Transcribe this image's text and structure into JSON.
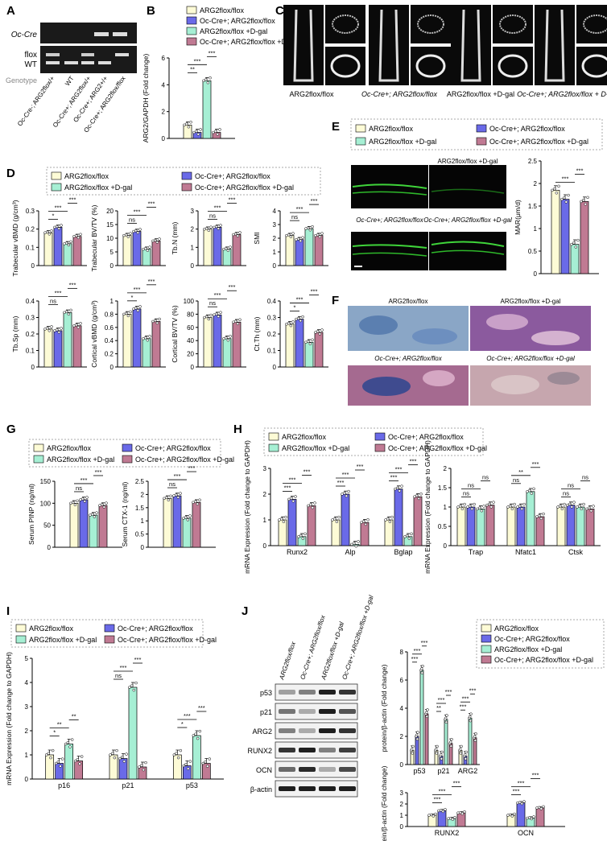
{
  "colors": {
    "c1": "#fdfbd6",
    "c2": "#6a6ae8",
    "c3": "#a6efd4",
    "c4": "#c07a93",
    "gel": "#1a1a1a",
    "axis": "#000000"
  },
  "legend": {
    "g1": "ARG2flox/flox",
    "g2": "Oc-Cre+; ARG2flox/flox",
    "g3": "ARG2flox/flox +D-gal",
    "g4": "Oc-Cre+; ARG2flox/flox +D-gal"
  },
  "panel_A": {
    "letter": "A",
    "band_labels": [
      "Oc-Cre",
      "flox",
      "WT"
    ],
    "genotype_label": "Genotype",
    "lanes": [
      "Oc-Cre-; ARG2flox/+",
      "WT",
      "Oc-Cre+; ARG2flox/+",
      "Oc-Cre+; ARG2+/+",
      "Oc-Cre+; ARG2flox/flox"
    ]
  },
  "panel_C": {
    "letter": "C",
    "labels": [
      "ARG2flox/flox",
      "Oc-Cre+; ARG2flox/flox",
      "ARG2flox/flox +D-gal",
      "Oc-Cre+; ARG2flox/flox + D-gal"
    ]
  },
  "panel_E": {
    "letter": "E",
    "image_labels": [
      "ARG2flox/flox",
      "ARG2flox/flox +D-gal",
      "Oc-Cre+; ARG2flox/flox",
      "Oc-Cre+; ARG2flox/flox +D-gal"
    ]
  },
  "panel_F": {
    "letter": "F",
    "image_labels": [
      "ARG2flox/flox",
      "ARG2flox/flox +D-gal",
      "Oc-Cre+; ARG2flox/flox",
      "Oc-Cre+; ARG2flox/flox +D-gal"
    ]
  },
  "panel_J_blot": {
    "letter": "J",
    "proteins": [
      "p53",
      "p21",
      "ARG2",
      "RUNX2",
      "OCN",
      "β-actin"
    ],
    "lanes": [
      "ARG2flox/flox",
      "Oc-Cre+; ARG2flox/flox",
      "ARG2flox/flox +D-gal",
      "Oc-Cre+; ARG2flox/flox +D-gal"
    ]
  },
  "chart_data": [
    {
      "id": "B",
      "type": "bar",
      "letter": "B",
      "ylabel": "ARG2/GAPDH (Fold change)",
      "ylim": [
        0,
        6
      ],
      "yticks": [
        0,
        2,
        4,
        6
      ],
      "categories": [
        ""
      ],
      "series": [
        {
          "values": [
            1.0
          ]
        },
        {
          "values": [
            0.45
          ]
        },
        {
          "values": [
            4.3
          ]
        },
        {
          "values": [
            0.45
          ]
        }
      ],
      "sig": [
        {
          "a": 0,
          "b": 1,
          "text": "**"
        },
        {
          "a": 0,
          "b": 2,
          "text": "***"
        },
        {
          "a": 2,
          "b": 3,
          "text": "***"
        }
      ]
    },
    {
      "id": "D1",
      "type": "bar",
      "letter": "D",
      "ylabel": "Trabecular vBMD (g/cm³)",
      "ylim": [
        0,
        0.3
      ],
      "yticks": [
        0.0,
        0.1,
        0.2,
        0.3
      ],
      "categories": [
        ""
      ],
      "series": [
        {
          "values": [
            0.18
          ]
        },
        {
          "values": [
            0.21
          ]
        },
        {
          "values": [
            0.12
          ]
        },
        {
          "values": [
            0.16
          ]
        }
      ],
      "sig": [
        {
          "a": 0,
          "b": 1,
          "text": "*"
        },
        {
          "a": 0,
          "b": 2,
          "text": "***"
        },
        {
          "a": 2,
          "b": 3,
          "text": "***"
        }
      ]
    },
    {
      "id": "D2",
      "type": "bar",
      "ylabel": "Trabecular BV/TV (%)",
      "ylim": [
        0,
        20
      ],
      "yticks": [
        0,
        5,
        10,
        15,
        20
      ],
      "categories": [
        ""
      ],
      "series": [
        {
          "values": [
            11
          ]
        },
        {
          "values": [
            12.5
          ]
        },
        {
          "values": [
            6
          ]
        },
        {
          "values": [
            9
          ]
        }
      ],
      "sig": [
        {
          "a": 0,
          "b": 1,
          "text": "ns"
        },
        {
          "a": 0,
          "b": 2,
          "text": "***"
        },
        {
          "a": 2,
          "b": 3,
          "text": "***"
        }
      ]
    },
    {
      "id": "D3",
      "type": "bar",
      "ylabel": "Tb.N (mm)",
      "ylim": [
        0,
        3
      ],
      "yticks": [
        0,
        1,
        2,
        3
      ],
      "categories": [
        ""
      ],
      "series": [
        {
          "values": [
            2.0
          ]
        },
        {
          "values": [
            2.1
          ]
        },
        {
          "values": [
            0.9
          ]
        },
        {
          "values": [
            1.7
          ]
        }
      ],
      "sig": [
        {
          "a": 0,
          "b": 1,
          "text": "ns"
        },
        {
          "a": 0,
          "b": 2,
          "text": "***"
        },
        {
          "a": 2,
          "b": 3,
          "text": "***"
        }
      ]
    },
    {
      "id": "D4",
      "type": "bar",
      "ylabel": "SMI",
      "ylim": [
        0,
        4
      ],
      "yticks": [
        0,
        1,
        2,
        3,
        4
      ],
      "categories": [
        ""
      ],
      "series": [
        {
          "values": [
            2.2
          ]
        },
        {
          "values": [
            1.9
          ]
        },
        {
          "values": [
            2.7
          ]
        },
        {
          "values": [
            2.2
          ]
        }
      ],
      "sig": [
        {
          "a": 0,
          "b": 1,
          "text": "ns"
        },
        {
          "a": 0,
          "b": 2,
          "text": "***"
        },
        {
          "a": 2,
          "b": 3,
          "text": "***"
        }
      ]
    },
    {
      "id": "D5",
      "type": "bar",
      "ylabel": "Tb.Sp (mm)",
      "ylim": [
        0,
        0.4
      ],
      "yticks": [
        0.0,
        0.1,
        0.2,
        0.3,
        0.4
      ],
      "categories": [
        ""
      ],
      "series": [
        {
          "values": [
            0.23
          ]
        },
        {
          "values": [
            0.22
          ]
        },
        {
          "values": [
            0.33
          ]
        },
        {
          "values": [
            0.25
          ]
        }
      ],
      "sig": [
        {
          "a": 0,
          "b": 1,
          "text": "ns"
        },
        {
          "a": 0,
          "b": 2,
          "text": "***"
        },
        {
          "a": 2,
          "b": 3,
          "text": "***"
        }
      ]
    },
    {
      "id": "D6",
      "type": "bar",
      "ylabel": "Cortical vBMD (g/cm³)",
      "ylim": [
        0,
        1.0
      ],
      "yticks": [
        0.0,
        0.2,
        0.4,
        0.6,
        0.8,
        1.0
      ],
      "categories": [
        ""
      ],
      "series": [
        {
          "values": [
            0.8
          ]
        },
        {
          "values": [
            0.88
          ]
        },
        {
          "values": [
            0.43
          ]
        },
        {
          "values": [
            0.69
          ]
        }
      ],
      "sig": [
        {
          "a": 0,
          "b": 1,
          "text": "*"
        },
        {
          "a": 0,
          "b": 2,
          "text": "***"
        },
        {
          "a": 2,
          "b": 3,
          "text": "***"
        }
      ]
    },
    {
      "id": "D7",
      "type": "bar",
      "ylabel": "Cortical BV/TV (%)",
      "ylim": [
        0,
        100
      ],
      "yticks": [
        0,
        20,
        40,
        60,
        80,
        100
      ],
      "categories": [
        ""
      ],
      "series": [
        {
          "values": [
            75
          ]
        },
        {
          "values": [
            79
          ]
        },
        {
          "values": [
            43
          ]
        },
        {
          "values": [
            68
          ]
        }
      ],
      "sig": [
        {
          "a": 0,
          "b": 1,
          "text": "ns"
        },
        {
          "a": 0,
          "b": 2,
          "text": "***"
        },
        {
          "a": 2,
          "b": 3,
          "text": "***"
        }
      ]
    },
    {
      "id": "D8",
      "type": "bar",
      "ylabel": "Ct.Th (mm)",
      "ylim": [
        0,
        0.4
      ],
      "yticks": [
        0.0,
        0.1,
        0.2,
        0.3,
        0.4
      ],
      "categories": [
        ""
      ],
      "series": [
        {
          "values": [
            0.26
          ]
        },
        {
          "values": [
            0.29
          ]
        },
        {
          "values": [
            0.15
          ]
        },
        {
          "values": [
            0.21
          ]
        }
      ],
      "sig": [
        {
          "a": 0,
          "b": 1,
          "text": "*"
        },
        {
          "a": 0,
          "b": 2,
          "text": "***"
        },
        {
          "a": 2,
          "b": 3,
          "text": "***"
        }
      ]
    },
    {
      "id": "E",
      "type": "bar",
      "ylabel": "MAR(μm/d)",
      "ylim": [
        0,
        2.5
      ],
      "yticks": [
        0.0,
        0.5,
        1.0,
        1.5,
        2.0,
        2.5
      ],
      "categories": [
        ""
      ],
      "series": [
        {
          "values": [
            1.85
          ]
        },
        {
          "values": [
            1.65
          ]
        },
        {
          "values": [
            0.65
          ]
        },
        {
          "values": [
            1.6
          ]
        }
      ],
      "sig": [
        {
          "a": 0,
          "b": 2,
          "text": "***"
        },
        {
          "a": 2,
          "b": 3,
          "text": "***"
        }
      ]
    },
    {
      "id": "G1",
      "type": "bar",
      "letter": "G",
      "ylabel": "Serum PINP (ng/ml)",
      "ylim": [
        0,
        150
      ],
      "yticks": [
        0,
        50,
        100,
        150
      ],
      "categories": [
        ""
      ],
      "series": [
        {
          "values": [
            100
          ]
        },
        {
          "values": [
            108
          ]
        },
        {
          "values": [
            73
          ]
        },
        {
          "values": [
            95
          ]
        }
      ],
      "sig": [
        {
          "a": 0,
          "b": 1,
          "text": "ns"
        },
        {
          "a": 0,
          "b": 2,
          "text": "***"
        },
        {
          "a": 2,
          "b": 3,
          "text": "***"
        }
      ]
    },
    {
      "id": "G2",
      "type": "bar",
      "ylabel": "Serum CTX-1 (ng/ml)",
      "ylim": [
        0,
        2.5
      ],
      "yticks": [
        0.0,
        0.5,
        1.0,
        1.5,
        2.0,
        2.5
      ],
      "categories": [
        ""
      ],
      "series": [
        {
          "values": [
            1.85
          ]
        },
        {
          "values": [
            1.95
          ]
        },
        {
          "values": [
            1.1
          ]
        },
        {
          "values": [
            1.7
          ]
        }
      ],
      "sig": [
        {
          "a": 0,
          "b": 1,
          "text": "ns"
        },
        {
          "a": 0,
          "b": 2,
          "text": "***"
        },
        {
          "a": 2,
          "b": 3,
          "text": "***"
        }
      ]
    },
    {
      "id": "H1",
      "type": "bar",
      "letter": "H",
      "ylabel": "mRNA Expression (Fold change to GAPDH)",
      "ylim": [
        0,
        3
      ],
      "yticks": [
        0,
        1,
        2,
        3
      ],
      "categories": [
        "Runx2",
        "Alp",
        "Bglap"
      ],
      "series": [
        {
          "values": [
            1.0,
            1.0,
            1.0
          ]
        },
        {
          "values": [
            1.8,
            2.0,
            2.2
          ]
        },
        {
          "values": [
            0.35,
            0.05,
            0.35
          ]
        },
        {
          "values": [
            1.55,
            0.9,
            1.9
          ]
        }
      ],
      "sig": [
        {
          "c": 0,
          "a": 0,
          "b": 1,
          "text": "***"
        },
        {
          "c": 0,
          "a": 0,
          "b": 2,
          "text": "***"
        },
        {
          "c": 0,
          "a": 2,
          "b": 3,
          "text": "***"
        },
        {
          "c": 1,
          "a": 0,
          "b": 1,
          "text": "***"
        },
        {
          "c": 1,
          "a": 0,
          "b": 2,
          "text": "***"
        },
        {
          "c": 1,
          "a": 2,
          "b": 3,
          "text": "***"
        },
        {
          "c": 2,
          "a": 0,
          "b": 1,
          "text": "***"
        },
        {
          "c": 2,
          "a": 0,
          "b": 2,
          "text": "***"
        },
        {
          "c": 2,
          "a": 2,
          "b": 3,
          "text": "***"
        }
      ]
    },
    {
      "id": "H2",
      "type": "bar",
      "ylabel": "mRNA Expression (Fold change to GAPDH)",
      "ylim": [
        0,
        2.0
      ],
      "yticks": [
        0.0,
        0.5,
        1.0,
        1.5,
        2.0
      ],
      "categories": [
        "Trap",
        "Nfatc1",
        "Ctsk"
      ],
      "series": [
        {
          "values": [
            1.0,
            1.0,
            1.0
          ]
        },
        {
          "values": [
            1.0,
            1.0,
            1.05
          ]
        },
        {
          "values": [
            0.95,
            1.4,
            1.0
          ]
        },
        {
          "values": [
            1.05,
            0.75,
            0.95
          ]
        }
      ],
      "sig": [
        {
          "c": 0,
          "a": 0,
          "b": 1,
          "text": "ns"
        },
        {
          "c": 0,
          "a": 0,
          "b": 2,
          "text": "ns"
        },
        {
          "c": 0,
          "a": 2,
          "b": 3,
          "text": "ns"
        },
        {
          "c": 1,
          "a": 0,
          "b": 1,
          "text": "ns"
        },
        {
          "c": 1,
          "a": 0,
          "b": 2,
          "text": "**"
        },
        {
          "c": 1,
          "a": 2,
          "b": 3,
          "text": "***"
        },
        {
          "c": 2,
          "a": 0,
          "b": 1,
          "text": "ns"
        },
        {
          "c": 2,
          "a": 0,
          "b": 2,
          "text": "ns"
        },
        {
          "c": 2,
          "a": 2,
          "b": 3,
          "text": "ns"
        }
      ]
    },
    {
      "id": "I",
      "type": "bar",
      "letter": "I",
      "ylabel": "mRNA Expression (Fold change to GAPDH)",
      "ylim": [
        0,
        5
      ],
      "yticks": [
        0,
        1,
        2,
        3,
        4,
        5
      ],
      "categories": [
        "p16",
        "p21",
        "p53"
      ],
      "series": [
        {
          "values": [
            1.0,
            1.0,
            1.0
          ]
        },
        {
          "values": [
            0.65,
            0.85,
            0.55
          ]
        },
        {
          "values": [
            1.45,
            3.8,
            1.8
          ]
        },
        {
          "values": [
            0.75,
            0.5,
            0.65
          ]
        }
      ],
      "sig": [
        {
          "c": 0,
          "a": 0,
          "b": 1,
          "text": "*"
        },
        {
          "c": 0,
          "a": 0,
          "b": 2,
          "text": "**"
        },
        {
          "c": 0,
          "a": 2,
          "b": 3,
          "text": "**"
        },
        {
          "c": 1,
          "a": 0,
          "b": 1,
          "text": "ns"
        },
        {
          "c": 1,
          "a": 0,
          "b": 2,
          "text": "***"
        },
        {
          "c": 1,
          "a": 2,
          "b": 3,
          "text": "***"
        },
        {
          "c": 2,
          "a": 0,
          "b": 1,
          "text": "*"
        },
        {
          "c": 2,
          "a": 0,
          "b": 2,
          "text": "***"
        },
        {
          "c": 2,
          "a": 2,
          "b": 3,
          "text": "***"
        }
      ]
    },
    {
      "id": "J1",
      "type": "bar",
      "ylabel": "protein/β-actin (Fold change)",
      "ylim": [
        0,
        8
      ],
      "yticks": [
        0,
        2,
        4,
        6,
        8
      ],
      "categories": [
        "p53",
        "p21",
        "ARG2"
      ],
      "series": [
        {
          "values": [
            1.0,
            1.0,
            1.0
          ]
        },
        {
          "values": [
            2.0,
            0.6,
            0.6
          ]
        },
        {
          "values": [
            6.7,
            3.2,
            3.3
          ]
        },
        {
          "values": [
            3.6,
            1.5,
            1.9
          ]
        }
      ],
      "sig": [
        {
          "c": 0,
          "a": 0,
          "b": 1,
          "text": "***"
        },
        {
          "c": 0,
          "a": 0,
          "b": 2,
          "text": "***"
        },
        {
          "c": 0,
          "a": 2,
          "b": 3,
          "text": "***"
        },
        {
          "c": 1,
          "a": 0,
          "b": 1,
          "text": "**"
        },
        {
          "c": 1,
          "a": 0,
          "b": 2,
          "text": "***"
        },
        {
          "c": 1,
          "a": 2,
          "b": 3,
          "text": "***"
        },
        {
          "c": 2,
          "a": 0,
          "b": 1,
          "text": "***"
        },
        {
          "c": 2,
          "a": 0,
          "b": 2,
          "text": "***"
        },
        {
          "c": 2,
          "a": 2,
          "b": 3,
          "text": "***"
        }
      ]
    },
    {
      "id": "J2",
      "type": "bar",
      "ylabel": "protein/β-actin (Fold change)",
      "ylim": [
        0,
        3
      ],
      "yticks": [
        0,
        1,
        2,
        3
      ],
      "categories": [
        "RUNX2",
        "OCN"
      ],
      "series": [
        {
          "values": [
            1.0,
            1.0
          ]
        },
        {
          "values": [
            1.4,
            2.1
          ]
        },
        {
          "values": [
            0.7,
            0.75
          ]
        },
        {
          "values": [
            1.2,
            1.65
          ]
        }
      ],
      "sig": [
        {
          "c": 0,
          "a": 0,
          "b": 1,
          "text": "***"
        },
        {
          "c": 0,
          "a": 0,
          "b": 2,
          "text": "***"
        },
        {
          "c": 0,
          "a": 2,
          "b": 3,
          "text": "***"
        },
        {
          "c": 1,
          "a": 0,
          "b": 1,
          "text": "***"
        },
        {
          "c": 1,
          "a": 0,
          "b": 2,
          "text": "***"
        },
        {
          "c": 1,
          "a": 2,
          "b": 3,
          "text": "***"
        }
      ]
    }
  ]
}
